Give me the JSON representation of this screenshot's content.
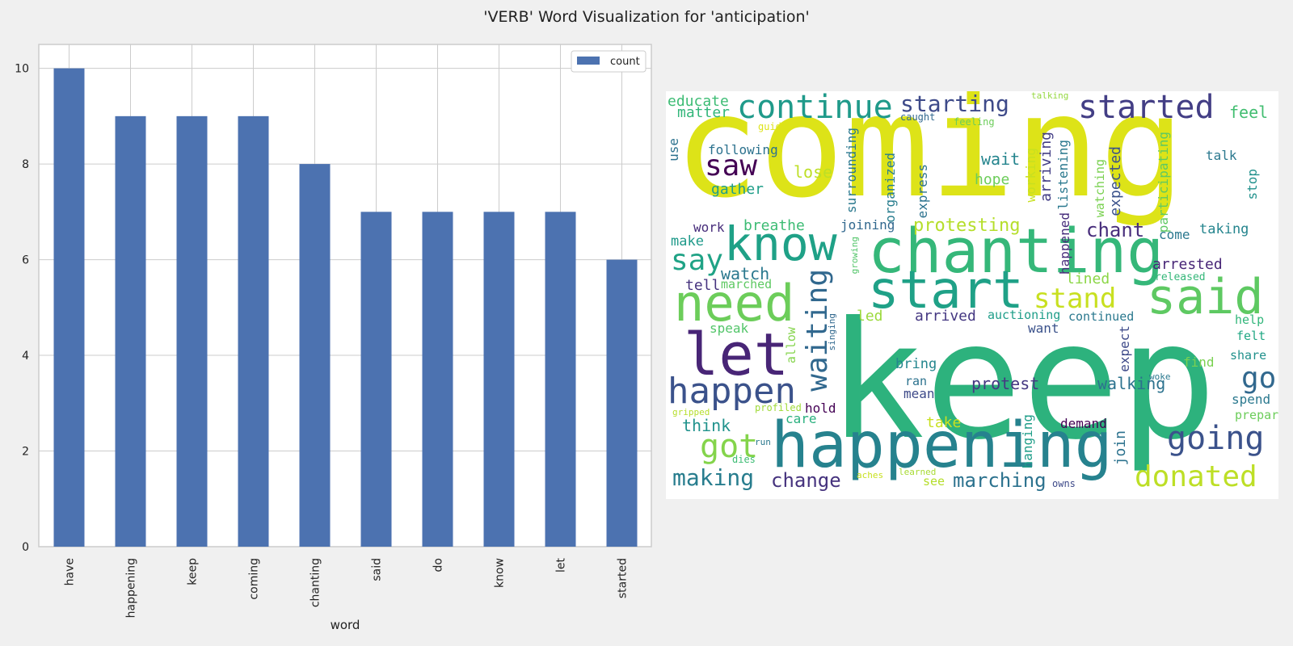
{
  "figure_title": "'VERB' Word Visualization for 'anticipation'",
  "chart_data": {
    "type": "bar",
    "categories": [
      "have",
      "happening",
      "keep",
      "coming",
      "chanting",
      "said",
      "do",
      "know",
      "let",
      "started"
    ],
    "series": [
      {
        "name": "count",
        "values": [
          10,
          9,
          9,
          9,
          8,
          7,
          7,
          7,
          7,
          6
        ]
      }
    ],
    "xlabel": "word",
    "ylabel": "",
    "ylim": [
      0,
      10.5
    ],
    "yticks": [
      0,
      2,
      4,
      6,
      8,
      10
    ],
    "grid": true,
    "legend": "top-right",
    "bar_color": "#4c72b0"
  },
  "wordcloud": {
    "words": [
      {
        "text": "coming",
        "color": "#dde318"
      },
      {
        "text": "keep",
        "color": "#2db27d"
      },
      {
        "text": "chanting",
        "color": "#35b779"
      },
      {
        "text": "happening",
        "color": "#26828e"
      },
      {
        "text": "know",
        "color": "#1fa187"
      },
      {
        "text": "start",
        "color": "#1fa187"
      },
      {
        "text": "need",
        "color": "#6ccd5a"
      },
      {
        "text": "let",
        "color": "#482576"
      },
      {
        "text": "said",
        "color": "#5ec962"
      },
      {
        "text": "continue",
        "color": "#1f9a8a"
      },
      {
        "text": "started",
        "color": "#433e85"
      },
      {
        "text": "starting",
        "color": "#3e4a89"
      },
      {
        "text": "happen",
        "color": "#3b528b"
      },
      {
        "text": "got",
        "color": "#84d44b"
      },
      {
        "text": "saw",
        "color": "#440154"
      },
      {
        "text": "say",
        "color": "#20a386"
      },
      {
        "text": "waiting",
        "color": "#31688e"
      },
      {
        "text": "stand",
        "color": "#c8e020"
      },
      {
        "text": "going",
        "color": "#3b528b"
      },
      {
        "text": "donated",
        "color": "#bddf26"
      },
      {
        "text": "go",
        "color": "#31688e"
      },
      {
        "text": "chant",
        "color": "#472d7b"
      },
      {
        "text": "making",
        "color": "#287d8e"
      },
      {
        "text": "change",
        "color": "#46337e"
      },
      {
        "text": "marching",
        "color": "#2c728e"
      },
      {
        "text": "protesting",
        "color": "#b5de2b"
      },
      {
        "text": "educate",
        "color": "#3dbc74"
      },
      {
        "text": "matter",
        "color": "#32b67a"
      },
      {
        "text": "feel",
        "color": "#42be71"
      },
      {
        "text": "following",
        "color": "#2c728e"
      },
      {
        "text": "lose",
        "color": "#bddf26"
      },
      {
        "text": "gather",
        "color": "#1f9e89"
      },
      {
        "text": "wait",
        "color": "#25858e"
      },
      {
        "text": "hope",
        "color": "#6ccd5a"
      },
      {
        "text": "talk",
        "color": "#2a788e"
      },
      {
        "text": "use",
        "color": "#2c728e"
      },
      {
        "text": "work",
        "color": "#472d7b"
      },
      {
        "text": "breathe",
        "color": "#3dbc74"
      },
      {
        "text": "joining",
        "color": "#31688e"
      },
      {
        "text": "come",
        "color": "#2a788e"
      },
      {
        "text": "taking",
        "color": "#25858e"
      },
      {
        "text": "make",
        "color": "#1f9a8a"
      },
      {
        "text": "watch",
        "color": "#2a788e"
      },
      {
        "text": "tell",
        "color": "#46337e"
      },
      {
        "text": "marched",
        "color": "#5ec962"
      },
      {
        "text": "arrested",
        "color": "#482677"
      },
      {
        "text": "lined",
        "color": "#8bd646"
      },
      {
        "text": "released",
        "color": "#35b779"
      },
      {
        "text": "arrived",
        "color": "#453882"
      },
      {
        "text": "auctioning",
        "color": "#1f9e89"
      },
      {
        "text": "continued",
        "color": "#2a788e"
      },
      {
        "text": "help",
        "color": "#32b67a"
      },
      {
        "text": "led",
        "color": "#9bd93c"
      },
      {
        "text": "speak",
        "color": "#52c569"
      },
      {
        "text": "want",
        "color": "#3b528b"
      },
      {
        "text": "felt",
        "color": "#22a884"
      },
      {
        "text": "bring",
        "color": "#24868e"
      },
      {
        "text": "find",
        "color": "#7ad151"
      },
      {
        "text": "share",
        "color": "#21918c"
      },
      {
        "text": "ran",
        "color": "#2c728e"
      },
      {
        "text": "mean",
        "color": "#3e4a89"
      },
      {
        "text": "protest",
        "color": "#453882"
      },
      {
        "text": "walking",
        "color": "#2c728e"
      },
      {
        "text": "woke",
        "color": "#2a788e"
      },
      {
        "text": "spend",
        "color": "#2a788e"
      },
      {
        "text": "think",
        "color": "#20928c"
      },
      {
        "text": "care",
        "color": "#2ab07f"
      },
      {
        "text": "hold",
        "color": "#440154"
      },
      {
        "text": "profiled",
        "color": "#a0da39"
      },
      {
        "text": "gripped",
        "color": "#b5de2b"
      },
      {
        "text": "take",
        "color": "#c8e020"
      },
      {
        "text": "demand",
        "color": "#440154"
      },
      {
        "text": "prepare",
        "color": "#6ccd5a"
      },
      {
        "text": "run",
        "color": "#2a788e"
      },
      {
        "text": "dies",
        "color": "#3dbc74"
      },
      {
        "text": "aches",
        "color": "#c8e020"
      },
      {
        "text": "learned",
        "color": "#a8db34"
      },
      {
        "text": "see",
        "color": "#b5de2b"
      },
      {
        "text": "owns",
        "color": "#3e4a89"
      },
      {
        "text": "talking",
        "color": "#95d840"
      },
      {
        "text": "caught",
        "color": "#31688e"
      },
      {
        "text": "feeling",
        "color": "#6ccd5a"
      },
      {
        "text": "guide",
        "color": "#dde318"
      },
      {
        "text": "surrounding",
        "color": "#2a788e"
      },
      {
        "text": "organized",
        "color": "#287d8e"
      },
      {
        "text": "express",
        "color": "#2c728e"
      },
      {
        "text": "arriving",
        "color": "#433e85"
      },
      {
        "text": "working",
        "color": "#c8e020"
      },
      {
        "text": "listening",
        "color": "#2a788e"
      },
      {
        "text": "expected",
        "color": "#3b528b"
      },
      {
        "text": "watching",
        "color": "#7ad151"
      },
      {
        "text": "participating",
        "color": "#5ec962"
      },
      {
        "text": "stop",
        "color": "#21918c"
      },
      {
        "text": "happened",
        "color": "#472d7b"
      },
      {
        "text": "growing",
        "color": "#52c569"
      },
      {
        "text": "allow",
        "color": "#84d44b"
      },
      {
        "text": "singing",
        "color": "#31688e"
      },
      {
        "text": "expect",
        "color": "#3e4a89"
      },
      {
        "text": "join",
        "color": "#2c728e"
      },
      {
        "text": "hanging",
        "color": "#1f9e89"
      }
    ]
  }
}
